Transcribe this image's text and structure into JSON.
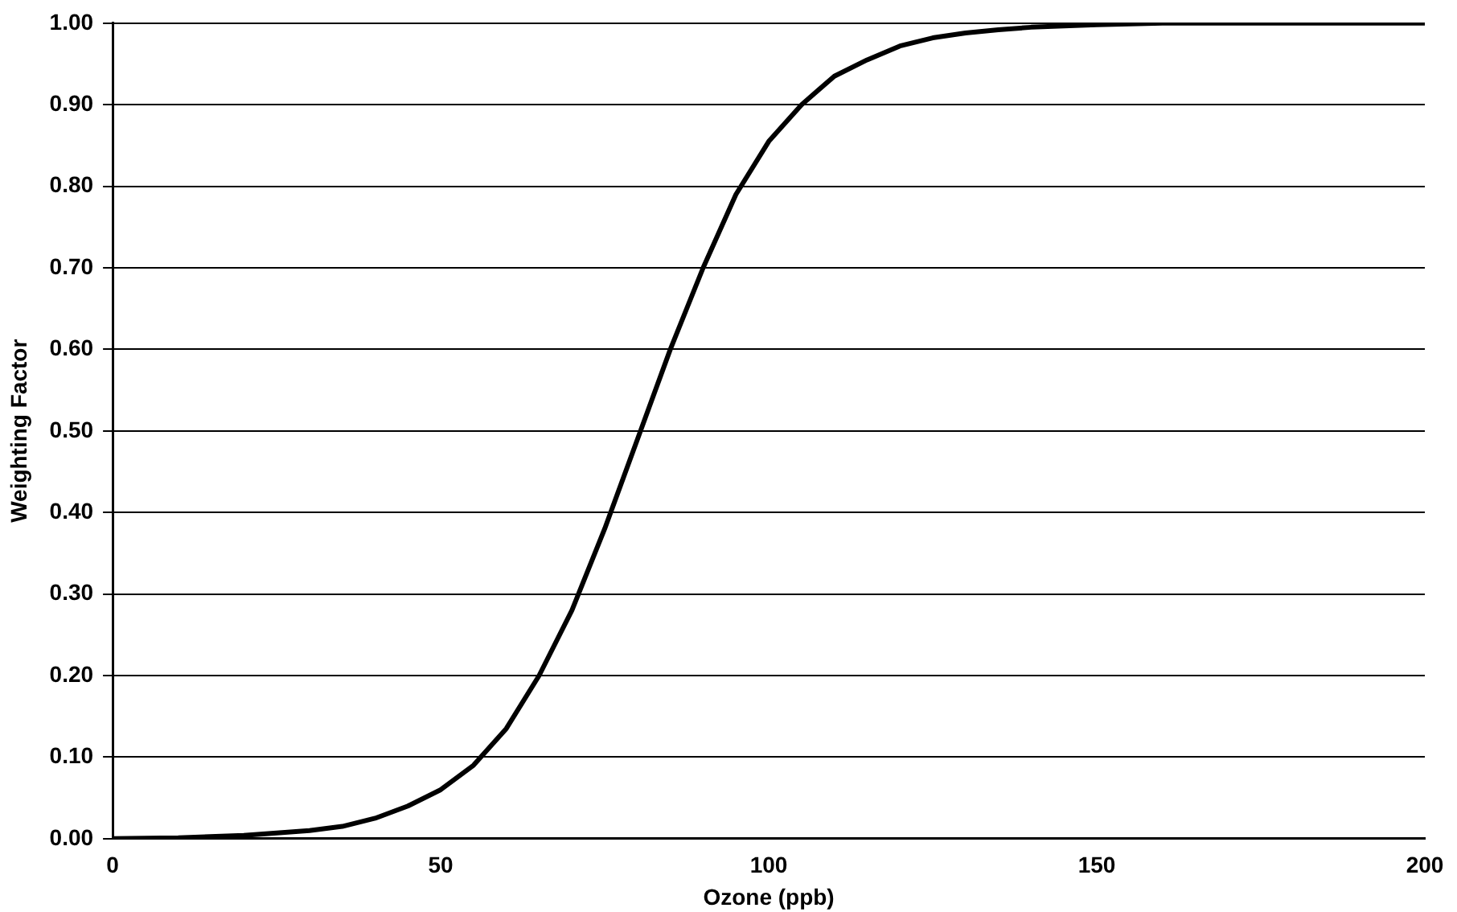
{
  "chart_data": {
    "type": "line",
    "xlabel": "Ozone (ppb)",
    "ylabel": "Weighting Factor",
    "x": [
      0,
      10,
      20,
      25,
      30,
      35,
      40,
      45,
      50,
      55,
      60,
      65,
      70,
      75,
      80,
      85,
      90,
      95,
      100,
      105,
      110,
      115,
      120,
      125,
      130,
      135,
      140,
      150,
      160,
      200
    ],
    "series": [
      {
        "color": "#000000",
        "values": [
          0,
          0.001,
          0.004,
          0.007,
          0.01,
          0.015,
          0.025,
          0.04,
          0.06,
          0.09,
          0.135,
          0.2,
          0.28,
          0.38,
          0.49,
          0.6,
          0.7,
          0.79,
          0.855,
          0.9,
          0.935,
          0.955,
          0.972,
          0.982,
          0.988,
          0.992,
          0.995,
          0.998,
          1,
          1
        ]
      }
    ],
    "xlim": [
      0,
      200
    ],
    "xticks": [
      0,
      50,
      100,
      150,
      200
    ],
    "ylim": [
      0,
      1
    ],
    "yticks": [
      {
        "value": 0,
        "label": "0.00"
      },
      {
        "value": 0.1,
        "label": "0.10"
      },
      {
        "value": 0.2,
        "label": "0.20"
      },
      {
        "value": 0.3,
        "label": "0.30"
      },
      {
        "value": 0.4,
        "label": "0.40"
      },
      {
        "value": 0.5,
        "label": "0.50"
      },
      {
        "value": 0.6,
        "label": "0.60"
      },
      {
        "value": 0.7,
        "label": "0.70"
      },
      {
        "value": 0.8,
        "label": "0.80"
      },
      {
        "value": 0.9,
        "label": "0.90"
      },
      {
        "value": 1,
        "label": "1.00"
      }
    ],
    "grid": "y",
    "marker": "none",
    "line_style": "solid"
  }
}
